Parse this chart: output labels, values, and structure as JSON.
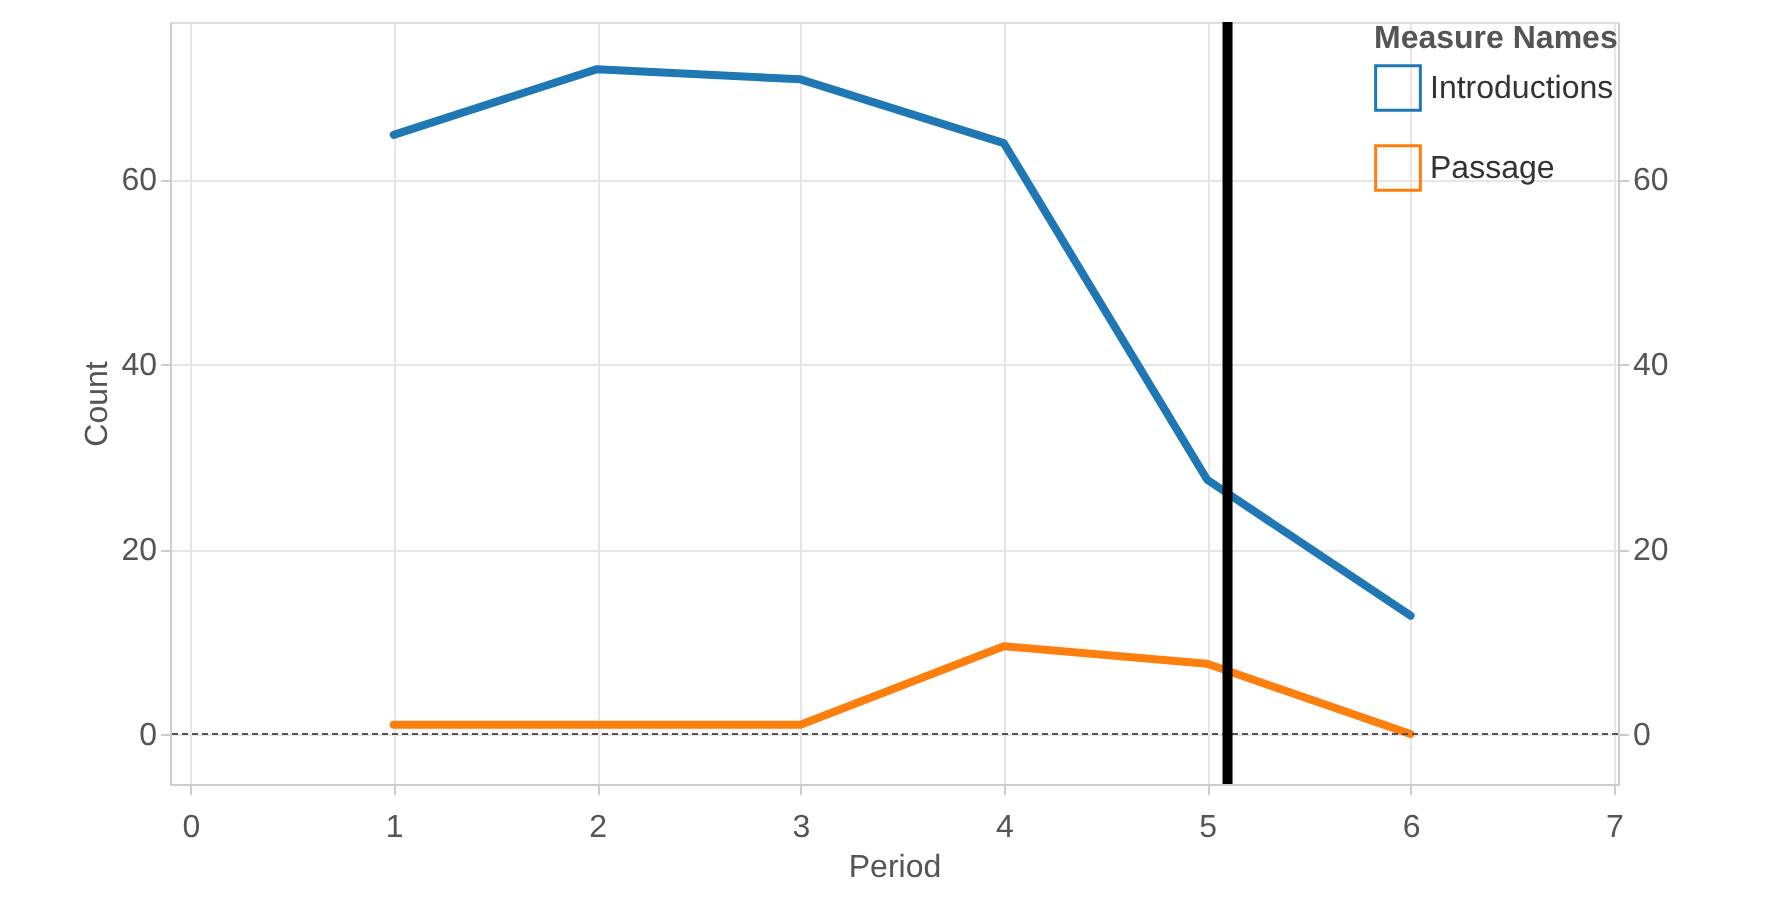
{
  "chart_data": {
    "type": "line",
    "xlabel": "Period",
    "ylabel": "Count",
    "legend_title": "Measure Names",
    "legend": "top right",
    "grid": true,
    "x": [
      1,
      2,
      3,
      4,
      5,
      6
    ],
    "series": [
      {
        "name": "Introductions",
        "color": "#1f77b4",
        "values": [
          64.8,
          71.9,
          70.8,
          63.9,
          27.5,
          12.8
        ]
      },
      {
        "name": "Passage",
        "color": "#ff7f0e",
        "values": [
          1,
          1,
          1,
          9.5,
          7.6,
          0
        ]
      }
    ],
    "xlim": [
      -0.1,
      7.02
    ],
    "xticks": [
      0,
      1,
      2,
      3,
      4,
      5,
      6,
      7
    ],
    "ylim": [
      -5.4,
      77
    ],
    "yticks": [
      0,
      20,
      40,
      60
    ],
    "y2lim": [
      -5.4,
      77
    ],
    "y2ticks": [
      0,
      20,
      40,
      60
    ],
    "ref_lines": [
      {
        "axis": "y",
        "value": 0,
        "color": "#555555",
        "line_style": "dashed"
      },
      {
        "axis": "x",
        "value": 5.1,
        "color": "#000000",
        "line_style": "solid"
      }
    ]
  }
}
